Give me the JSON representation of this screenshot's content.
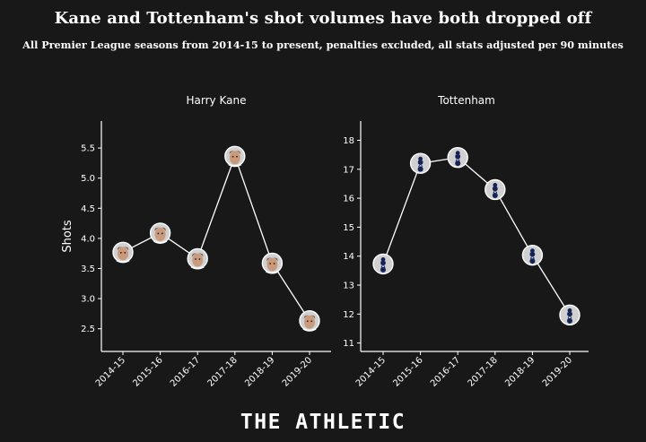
{
  "title": "Kane and Tottenham's shot volumes have both dropped off",
  "subtitle": "All Premier League seasons from 2014-15 to present, penalties excluded, all stats adjusted per 90 minutes",
  "brand": "THE ATHLETIC",
  "colors": {
    "background": "#181818",
    "foreground": "#ffffff",
    "marker_fill": "#d0d0d0"
  },
  "chart_data": [
    {
      "type": "line",
      "title": "Harry Kane",
      "ylabel": "Shots",
      "xlabel": "",
      "x": [
        "2014-15",
        "2015-16",
        "2016-17",
        "2017-18",
        "2018-19",
        "2019-20"
      ],
      "series": [
        {
          "values": [
            3.8,
            4.1,
            3.7,
            5.3,
            3.63,
            2.73
          ]
        }
      ],
      "ylim": [
        2.25,
        5.85
      ],
      "yticks": [
        "2.5",
        "3.0",
        "3.5",
        "4.0",
        "4.5",
        "5.0",
        "5.5"
      ],
      "marker_icon": "player-face-icon",
      "grid": false
    },
    {
      "type": "line",
      "title": "Tottenham",
      "ylabel": "",
      "xlabel": "",
      "x": [
        "2014-15",
        "2015-16",
        "2016-17",
        "2017-18",
        "2018-19",
        "2019-20"
      ],
      "series": [
        {
          "values": [
            13.75,
            17.2,
            17.4,
            16.3,
            14.05,
            12.0
          ]
        }
      ],
      "ylim": [
        10.75,
        18.65
      ],
      "yticks": [
        "11",
        "12",
        "13",
        "14",
        "15",
        "16",
        "17",
        "18"
      ],
      "marker_icon": "tottenham-crest-icon",
      "grid": false
    }
  ]
}
